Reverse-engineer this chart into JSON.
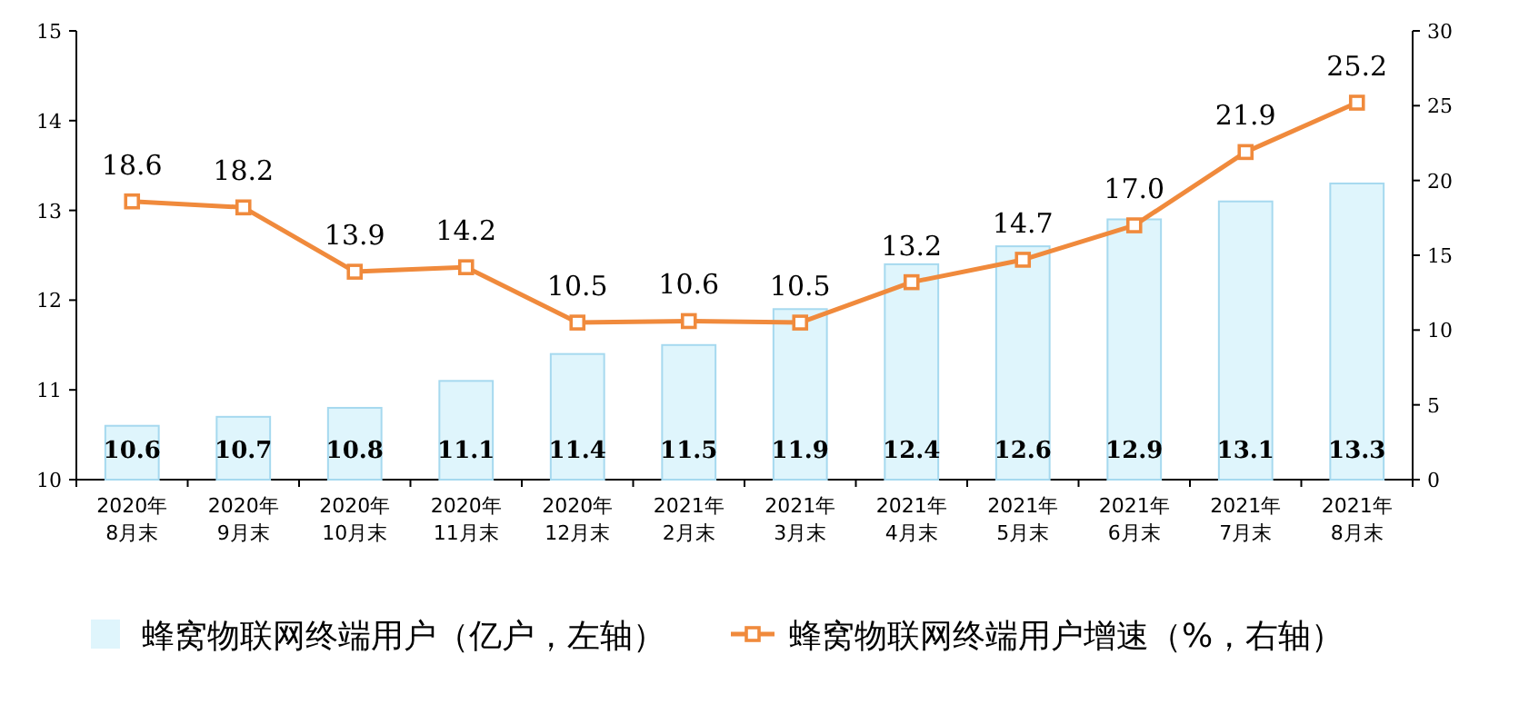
{
  "chart_data": {
    "type": "bar",
    "categories": [
      "2020年8月末",
      "2020年9月末",
      "2020年10月末",
      "2020年11月末",
      "2020年12月末",
      "2021年2月末",
      "2021年3月末",
      "2021年4月末",
      "2021年5月末",
      "2021年6月末",
      "2021年7月末",
      "2021年8月末"
    ],
    "series": [
      {
        "name": "蜂窝物联网终端用户（亿户，左轴）",
        "color": "#dff5fc",
        "values": [
          10.6,
          10.7,
          10.8,
          11.1,
          11.4,
          11.5,
          11.9,
          12.4,
          12.6,
          12.9,
          13.1,
          13.3
        ]
      },
      {
        "name": "蜂窝物联网终端用户增速（%，右轴）",
        "type": "line",
        "axis": "y2",
        "color": "#f08a3c",
        "marker": "square",
        "values": [
          18.6,
          18.2,
          13.9,
          14.2,
          10.5,
          10.6,
          10.5,
          13.2,
          14.7,
          17.0,
          21.9,
          25.2
        ],
        "value_labels": [
          "18.6",
          "18.2",
          "13.9",
          "14.2",
          "10.5",
          "10.6",
          "10.5",
          "13.2",
          "14.7",
          "17.0",
          "21.9",
          "25.2"
        ]
      }
    ],
    "ylim": [
      10,
      15
    ],
    "yticks": [
      10,
      11,
      12,
      13,
      14,
      15
    ],
    "y2lim": [
      0,
      30
    ],
    "y2ticks": [
      0,
      5,
      10,
      15,
      20,
      25,
      30
    ],
    "data_labels": true,
    "legend": "bottom"
  }
}
